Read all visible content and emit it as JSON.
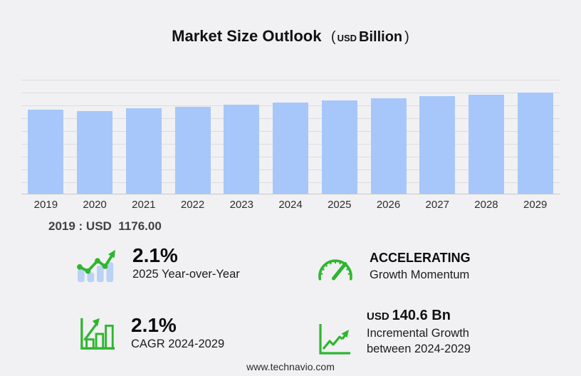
{
  "header": {
    "title": "Market Size Outlook",
    "paren_open": "(",
    "currency": "USD",
    "unit": "Billion",
    "paren_close": ")"
  },
  "chart_data": {
    "type": "bar",
    "title": "Market Size Outlook (USD Billion)",
    "xlabel": "",
    "ylabel": "",
    "categories": [
      "2019",
      "2020",
      "2021",
      "2022",
      "2023",
      "2024",
      "2025",
      "2026",
      "2027",
      "2028",
      "2029"
    ],
    "values": [
      1176.0,
      1158.0,
      1196.0,
      1218.0,
      1248.0,
      1284.0,
      1311.0,
      1338.4,
      1366.5,
      1395.2,
      1424.5
    ],
    "labeled_point": {
      "category": "2019",
      "label": "2019 : USD  1176.00"
    },
    "ylim": [
      0,
      1600
    ],
    "grid": true,
    "legend": false,
    "bar_color": "#a7c7fa"
  },
  "annotation": "2019 : USD  1176.00",
  "stats": [
    {
      "value": "2.1%",
      "label": "2025 Year-over-Year",
      "icon": "bars-uptrend-icon"
    },
    {
      "value": "ACCELERATING",
      "label": "Growth Momentum",
      "icon": "speedometer-icon"
    },
    {
      "value": "2.1%",
      "label": "CAGR 2024-2029",
      "icon": "growth-bars-icon"
    },
    {
      "value_prefix": "USD",
      "value": "140.6 Bn",
      "label": "Incremental Growth between 2024-2029",
      "icon": "incremental-growth-icon"
    }
  ],
  "footer": {
    "website": "www.technavio.com"
  },
  "colors": {
    "background": "#f1f1f3",
    "bar_blue": "#a7c7fa",
    "icon_blue": "#b9d2f5",
    "accent_green": "#2eb62e",
    "gridline": "#dcdcdf"
  }
}
